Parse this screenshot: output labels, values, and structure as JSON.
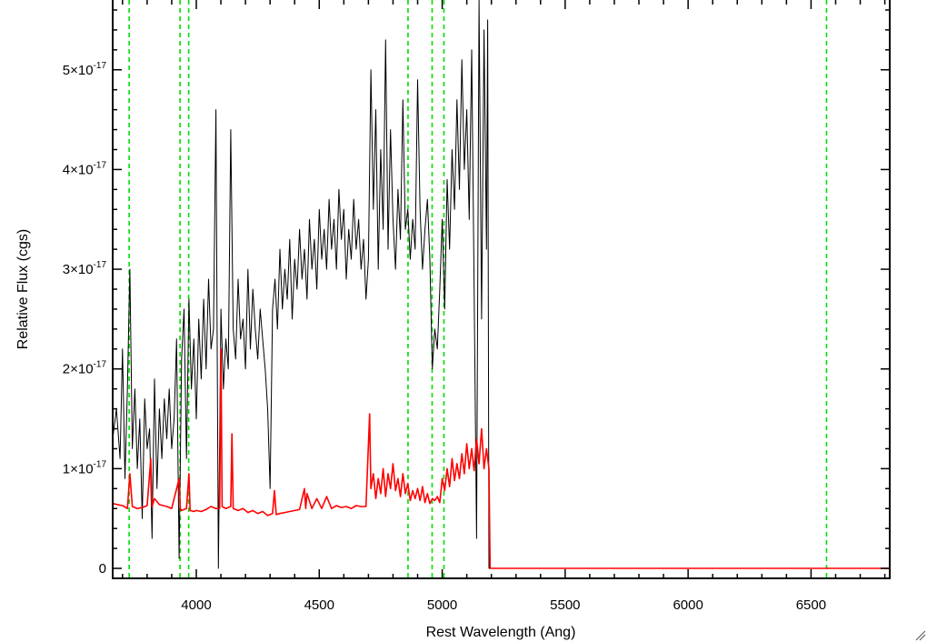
{
  "chart_data": {
    "type": "line",
    "title": "",
    "xlabel": "Rest Wavelength (Ang)",
    "ylabel": "Relative Flux (cgs)",
    "xlim": [
      3660,
      6820
    ],
    "ylim": [
      -1e-18,
      5.7e-17
    ],
    "grid": false,
    "x_ticks": [
      {
        "value": 4000,
        "label": "4000"
      },
      {
        "value": 4500,
        "label": "4500"
      },
      {
        "value": 5000,
        "label": "5000"
      },
      {
        "value": 5500,
        "label": "5500"
      },
      {
        "value": 6000,
        "label": "6000"
      },
      {
        "value": 6500,
        "label": "6500"
      }
    ],
    "y_ticks": [
      {
        "value": 0,
        "mant": "0",
        "exp": ""
      },
      {
        "value": 1e-17,
        "mant": "1×10",
        "exp": "-17"
      },
      {
        "value": 2e-17,
        "mant": "2×10",
        "exp": "-17"
      },
      {
        "value": 3e-17,
        "mant": "3×10",
        "exp": "-17"
      },
      {
        "value": 4e-17,
        "mant": "4×10",
        "exp": "-17"
      },
      {
        "value": 5e-17,
        "mant": "5×10",
        "exp": "-17"
      }
    ],
    "vertical_lines": [
      3727,
      3934,
      3969,
      4861,
      4959,
      5007,
      6563
    ],
    "series": [
      {
        "color": "#000000",
        "x": [
          3660,
          3675,
          3690,
          3700,
          3710,
          3720,
          3730,
          3740,
          3750,
          3760,
          3770,
          3780,
          3790,
          3800,
          3810,
          3820,
          3830,
          3840,
          3850,
          3860,
          3870,
          3880,
          3890,
          3900,
          3910,
          3920,
          3930,
          3940,
          3950,
          3960,
          3970,
          3980,
          3990,
          4000,
          4010,
          4020,
          4030,
          4040,
          4050,
          4060,
          4070,
          4080,
          4090,
          4100,
          4110,
          4120,
          4130,
          4140,
          4150,
          4160,
          4170,
          4180,
          4190,
          4200,
          4210,
          4220,
          4230,
          4240,
          4250,
          4260,
          4270,
          4280,
          4290,
          4300,
          4310,
          4320,
          4330,
          4340,
          4350,
          4360,
          4370,
          4380,
          4390,
          4400,
          4410,
          4420,
          4430,
          4440,
          4450,
          4460,
          4470,
          4480,
          4490,
          4500,
          4510,
          4520,
          4530,
          4540,
          4550,
          4560,
          4570,
          4580,
          4590,
          4600,
          4610,
          4620,
          4630,
          4640,
          4650,
          4660,
          4670,
          4680,
          4690,
          4700,
          4710,
          4720,
          4730,
          4740,
          4750,
          4760,
          4770,
          4780,
          4790,
          4800,
          4810,
          4820,
          4830,
          4840,
          4850,
          4860,
          4870,
          4880,
          4890,
          4900,
          4910,
          4920,
          4930,
          4940,
          4950,
          4960,
          4970,
          4980,
          4990,
          5000,
          5010,
          5020,
          5030,
          5040,
          5050,
          5060,
          5070,
          5080,
          5090,
          5100,
          5110,
          5120,
          5130,
          5140,
          5150,
          5160,
          5170,
          5180,
          5185,
          5190,
          5195,
          5200,
          6820
        ],
        "y": [
          1.3e-17,
          1.6e-17,
          1.1e-17,
          2.2e-17,
          9e-18,
          1.8e-17,
          3e-17,
          1.2e-17,
          1.8e-17,
          1e-17,
          1.5e-17,
          5e-18,
          1.7e-17,
          1.2e-17,
          1.4e-17,
          3e-18,
          1.9e-17,
          8e-18,
          1.6e-17,
          1.1e-17,
          1.7e-17,
          1.3e-17,
          1.8e-17,
          1.2e-17,
          1.5e-17,
          2.3e-17,
          1e-18,
          2.1e-17,
          2.6e-17,
          1.1e-17,
          2.7e-17,
          1.8e-17,
          2.3e-17,
          1.5e-17,
          2.5e-17,
          1.9e-17,
          2.7e-17,
          2e-17,
          2.9e-17,
          2.2e-17,
          2.4e-17,
          4.6e-17,
          0.0,
          2.6e-17,
          1.8e-17,
          2.3e-17,
          2e-17,
          4.4e-17,
          2.4e-17,
          2.1e-17,
          2.9e-17,
          2.3e-17,
          2.5e-17,
          2e-17,
          3e-17,
          2.2e-17,
          2.8e-17,
          2.4e-17,
          2.1e-17,
          2.6e-17,
          2.3e-17,
          2e-17,
          1.6e-17,
          8e-18,
          2.6e-17,
          2.9e-17,
          2.4e-17,
          3.2e-17,
          2.6e-17,
          3e-17,
          2.7e-17,
          3.3e-17,
          2.5e-17,
          3.1e-17,
          2.8e-17,
          3.4e-17,
          2.9e-17,
          3.2e-17,
          2.7e-17,
          3.5e-17,
          3e-17,
          3.3e-17,
          2.8e-17,
          3.6e-17,
          3.1e-17,
          3.4e-17,
          3e-17,
          3.7e-17,
          3.2e-17,
          3.5e-17,
          3e-17,
          3.8e-17,
          3.3e-17,
          3.6e-17,
          2.9e-17,
          3.4e-17,
          3.1e-17,
          3.7e-17,
          3.2e-17,
          3.5e-17,
          3e-17,
          3.3e-17,
          2.7e-17,
          3.1e-17,
          5e-17,
          3.6e-17,
          4.6e-17,
          3e-17,
          4.2e-17,
          3.4e-17,
          5.3e-17,
          3.2e-17,
          4.4e-17,
          3.5e-17,
          3e-17,
          3.8e-17,
          3.3e-17,
          4.7e-17,
          3.4e-17,
          3.6e-17,
          3.1e-17,
          3.5e-17,
          3.2e-17,
          4.9e-17,
          3.6e-17,
          3e-17,
          3.4e-17,
          3.7e-17,
          3.1e-17,
          2e-17,
          2.4e-17,
          2.2e-17,
          2.8e-17,
          3.5e-17,
          2.6e-17,
          3.9e-17,
          3.2e-17,
          4.2e-17,
          3.6e-17,
          4.7e-17,
          3.8e-17,
          5.1e-17,
          4e-17,
          4.6e-17,
          3.5e-17,
          5.2e-17,
          2.8e-17,
          3e-18,
          5.7e-17,
          2.5e-17,
          5.4e-17,
          3.2e-17,
          5.5e-17,
          0,
          0,
          0,
          0
        ]
      },
      {
        "color": "#ff0000",
        "x": [
          3660,
          3700,
          3720,
          3730,
          3740,
          3760,
          3780,
          3800,
          3815,
          3820,
          3830,
          3850,
          3880,
          3900,
          3930,
          3935,
          3940,
          3960,
          3970,
          3975,
          3990,
          4000,
          4020,
          4040,
          4060,
          4080,
          4095,
          4100,
          4105,
          4120,
          4140,
          4145,
          4150,
          4170,
          4190,
          4210,
          4230,
          4250,
          4270,
          4290,
          4310,
          4318,
          4325,
          4340,
          4360,
          4380,
          4400,
          4420,
          4440,
          4445,
          4450,
          4470,
          4490,
          4510,
          4530,
          4550,
          4570,
          4590,
          4610,
          4630,
          4650,
          4670,
          4690,
          4705,
          4710,
          4720,
          4730,
          4740,
          4750,
          4760,
          4770,
          4780,
          4790,
          4800,
          4810,
          4820,
          4830,
          4840,
          4850,
          4860,
          4870,
          4880,
          4890,
          4900,
          4910,
          4920,
          4930,
          4940,
          4950,
          4960,
          4970,
          4980,
          4990,
          5000,
          5010,
          5020,
          5030,
          5040,
          5050,
          5060,
          5070,
          5080,
          5090,
          5100,
          5110,
          5120,
          5130,
          5140,
          5150,
          5160,
          5170,
          5180,
          5190,
          5195,
          5200,
          6820
        ],
        "y": [
          6.5e-18,
          6.3e-18,
          6e-18,
          9.5e-18,
          6.2e-18,
          6e-18,
          6.1e-18,
          6.3e-18,
          1.1e-17,
          6.2e-18,
          7e-18,
          6.4e-18,
          6.2e-18,
          6e-18,
          9e-18,
          6e-18,
          5.8e-18,
          6e-18,
          9.5e-18,
          5.8e-18,
          5.7e-18,
          5.8e-18,
          5.7e-18,
          5.9e-18,
          6.2e-18,
          6e-18,
          6e-18,
          2.2e-17,
          6.2e-18,
          6e-18,
          6.2e-18,
          1.35e-17,
          6e-18,
          5.8e-18,
          6e-18,
          5.6e-18,
          5.8e-18,
          5.5e-18,
          5.7e-18,
          5.3e-18,
          5.5e-18,
          7.8e-18,
          5.4e-18,
          5.5e-18,
          5.6e-18,
          5.7e-18,
          5.8e-18,
          5.9e-18,
          8e-18,
          6e-18,
          7.5e-18,
          6e-18,
          7e-18,
          6e-18,
          7.2e-18,
          6e-18,
          6.3e-18,
          6.1e-18,
          6.2e-18,
          6e-18,
          6.3e-18,
          6.2e-18,
          6.2e-18,
          1.55e-17,
          8e-18,
          9.5e-18,
          7e-18,
          9e-18,
          7.5e-18,
          1e-17,
          7.2e-18,
          9.5e-18,
          8e-18,
          1.05e-17,
          7.8e-18,
          9e-18,
          7.2e-18,
          9.5e-18,
          7.5e-18,
          8.5e-18,
          6.8e-18,
          7.8e-18,
          7e-18,
          8e-18,
          6.8e-18,
          8.2e-18,
          6.6e-18,
          7.5e-18,
          6.5e-18,
          7e-18,
          6.8e-18,
          7.2e-18,
          6.6e-18,
          9e-18,
          7.8e-18,
          1e-17,
          8.2e-18,
          1.1e-17,
          8.8e-18,
          1.05e-17,
          9e-18,
          1.15e-17,
          9.5e-18,
          1.25e-17,
          1e-17,
          1.2e-17,
          9.8e-18,
          1.3e-17,
          1.05e-17,
          1.4e-17,
          1e-17,
          1.2e-17,
          1e-17,
          0,
          0,
          0
        ]
      }
    ]
  }
}
